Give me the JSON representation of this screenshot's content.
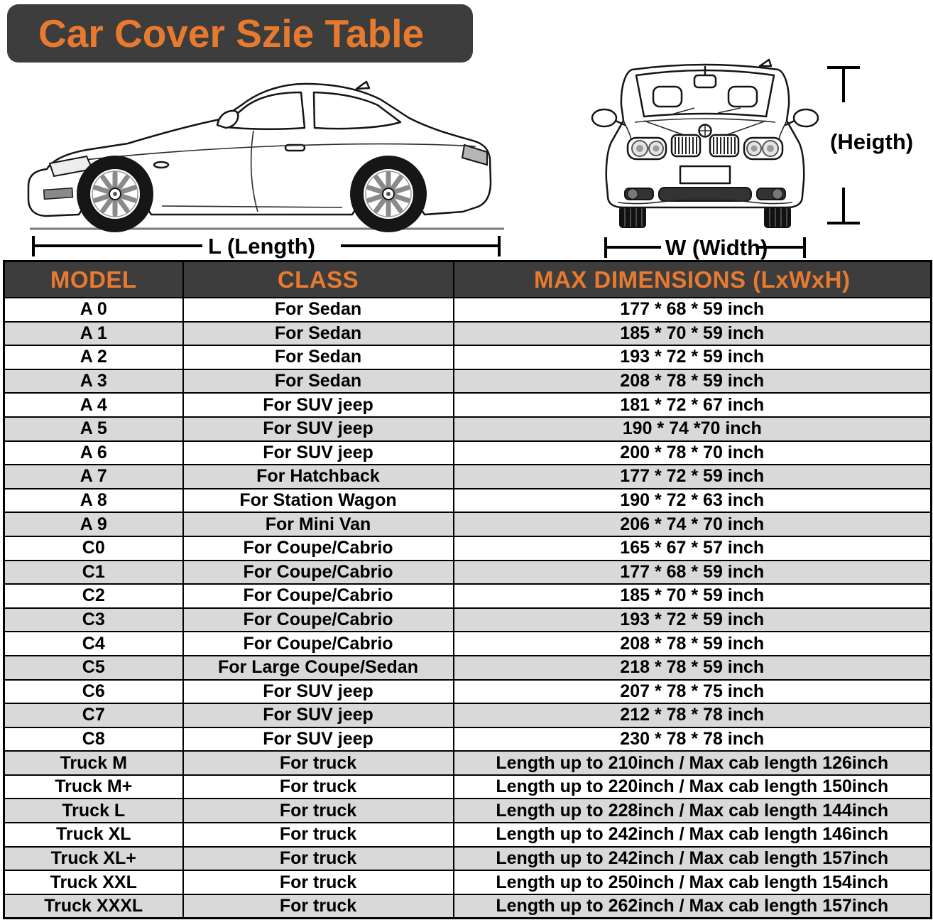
{
  "title": "Car Cover Szie Table",
  "diagram": {
    "length_label": "L (Length)",
    "width_label": "W (Width)",
    "height_label": "(Heigth)"
  },
  "table": {
    "headers": [
      "MODEL",
      "CLASS",
      "MAX DIMENSIONS (LxWxH)"
    ],
    "rows": [
      {
        "model": "A 0",
        "class": "For Sedan",
        "dims": "177 * 68 * 59 inch"
      },
      {
        "model": "A 1",
        "class": "For Sedan",
        "dims": "185 * 70 * 59 inch"
      },
      {
        "model": "A 2",
        "class": "For Sedan",
        "dims": "193 * 72 * 59 inch"
      },
      {
        "model": "A 3",
        "class": "For Sedan",
        "dims": "208 * 78 * 59 inch"
      },
      {
        "model": "A 4",
        "class": "For SUV jeep",
        "dims": "181 * 72 * 67 inch"
      },
      {
        "model": "A 5",
        "class": "For SUV jeep",
        "dims": "190 * 74  *70 inch"
      },
      {
        "model": "A 6",
        "class": "For SUV jeep",
        "dims": "200 * 78 * 70 inch"
      },
      {
        "model": "A 7",
        "class": "For Hatchback",
        "dims": "177 * 72 * 59 inch"
      },
      {
        "model": "A 8",
        "class": "For Station Wagon",
        "dims": "190 * 72 * 63 inch"
      },
      {
        "model": "A 9",
        "class": "For Mini Van",
        "dims": "206 * 74 * 70 inch"
      },
      {
        "model": "C0",
        "class": "For Coupe/Cabrio",
        "dims": "165 * 67 * 57 inch"
      },
      {
        "model": "C1",
        "class": "For Coupe/Cabrio",
        "dims": "177 * 68 * 59 inch"
      },
      {
        "model": "C2",
        "class": "For Coupe/Cabrio",
        "dims": "185 * 70 * 59 inch"
      },
      {
        "model": "C3",
        "class": "For Coupe/Cabrio",
        "dims": "193 * 72 * 59 inch"
      },
      {
        "model": "C4",
        "class": "For Coupe/Cabrio",
        "dims": "208 * 78 * 59 inch"
      },
      {
        "model": "C5",
        "class": "For Large Coupe/Sedan",
        "dims": "218 * 78 * 59 inch"
      },
      {
        "model": "C6",
        "class": "For SUV jeep",
        "dims": "207 * 78 * 75 inch"
      },
      {
        "model": "C7",
        "class": "For SUV jeep",
        "dims": "212 * 78 * 78 inch"
      },
      {
        "model": "C8",
        "class": "For SUV jeep",
        "dims": "230 * 78 * 78 inch"
      },
      {
        "model": "Truck M",
        "class": "For truck",
        "dims": "Length up to 210inch / Max cab length 126inch"
      },
      {
        "model": "Truck M+",
        "class": "For truck",
        "dims": "Length up to 220inch / Max cab length 150inch"
      },
      {
        "model": "Truck L",
        "class": "For truck",
        "dims": "Length up to 228inch / Max cab length 144inch"
      },
      {
        "model": "Truck XL",
        "class": "For truck",
        "dims": "Length up to 242inch / Max cab length 146inch"
      },
      {
        "model": "Truck XL+",
        "class": "For truck",
        "dims": "Length up to 242inch / Max cab length 157inch"
      },
      {
        "model": "Truck XXL",
        "class": "For truck",
        "dims": "Length up to 250inch / Max cab length 154inch"
      },
      {
        "model": "Truck XXXL",
        "class": "For truck",
        "dims": "Length up to 262inch / Max cab length 157inch"
      }
    ]
  },
  "chart_data": {
    "type": "table",
    "title": "Car Cover Szie Table",
    "columns": [
      "MODEL",
      "CLASS",
      "MAX DIMENSIONS (LxWxH)"
    ],
    "rows": [
      [
        "A 0",
        "For Sedan",
        "177 * 68 * 59 inch"
      ],
      [
        "A 1",
        "For Sedan",
        "185 * 70 * 59 inch"
      ],
      [
        "A 2",
        "For Sedan",
        "193 * 72 * 59 inch"
      ],
      [
        "A 3",
        "For Sedan",
        "208 * 78 * 59 inch"
      ],
      [
        "A 4",
        "For SUV jeep",
        "181 * 72 * 67 inch"
      ],
      [
        "A 5",
        "For SUV jeep",
        "190 * 74  *70 inch"
      ],
      [
        "A 6",
        "For SUV jeep",
        "200 * 78 * 70 inch"
      ],
      [
        "A 7",
        "For Hatchback",
        "177 * 72 * 59 inch"
      ],
      [
        "A 8",
        "For Station Wagon",
        "190 * 72 * 63 inch"
      ],
      [
        "A 9",
        "For Mini Van",
        "206 * 74 * 70 inch"
      ],
      [
        "C0",
        "For Coupe/Cabrio",
        "165 * 67 * 57 inch"
      ],
      [
        "C1",
        "For Coupe/Cabrio",
        "177 * 68 * 59 inch"
      ],
      [
        "C2",
        "For Coupe/Cabrio",
        "185 * 70 * 59 inch"
      ],
      [
        "C3",
        "For Coupe/Cabrio",
        "193 * 72 * 59 inch"
      ],
      [
        "C4",
        "For Coupe/Cabrio",
        "208 * 78 * 59 inch"
      ],
      [
        "C5",
        "For Large Coupe/Sedan",
        "218 * 78 * 59 inch"
      ],
      [
        "C6",
        "For SUV jeep",
        "207 * 78 * 75 inch"
      ],
      [
        "C7",
        "For SUV jeep",
        "212 * 78 * 78 inch"
      ],
      [
        "C8",
        "For SUV jeep",
        "230 * 78 * 78 inch"
      ],
      [
        "Truck M",
        "For truck",
        "Length up to 210inch / Max cab length 126inch"
      ],
      [
        "Truck M+",
        "For truck",
        "Length up to 220inch / Max cab length 150inch"
      ],
      [
        "Truck L",
        "For truck",
        "Length up to 228inch / Max cab length 144inch"
      ],
      [
        "Truck XL",
        "For truck",
        "Length up to 242inch / Max cab length 146inch"
      ],
      [
        "Truck XL+",
        "For truck",
        "Length up to 242inch / Max cab length 157inch"
      ],
      [
        "Truck XXL",
        "For truck",
        "Length up to 250inch / Max cab length 154inch"
      ],
      [
        "Truck XXXL",
        "For truck",
        "Length up to 262inch / Max cab length 157inch"
      ]
    ]
  },
  "colors": {
    "accent_orange": "#E87A2F",
    "dark_header_bg": "#3D3D3D",
    "alt_row_gray": "#D9D9D9",
    "border_black": "#000000"
  }
}
